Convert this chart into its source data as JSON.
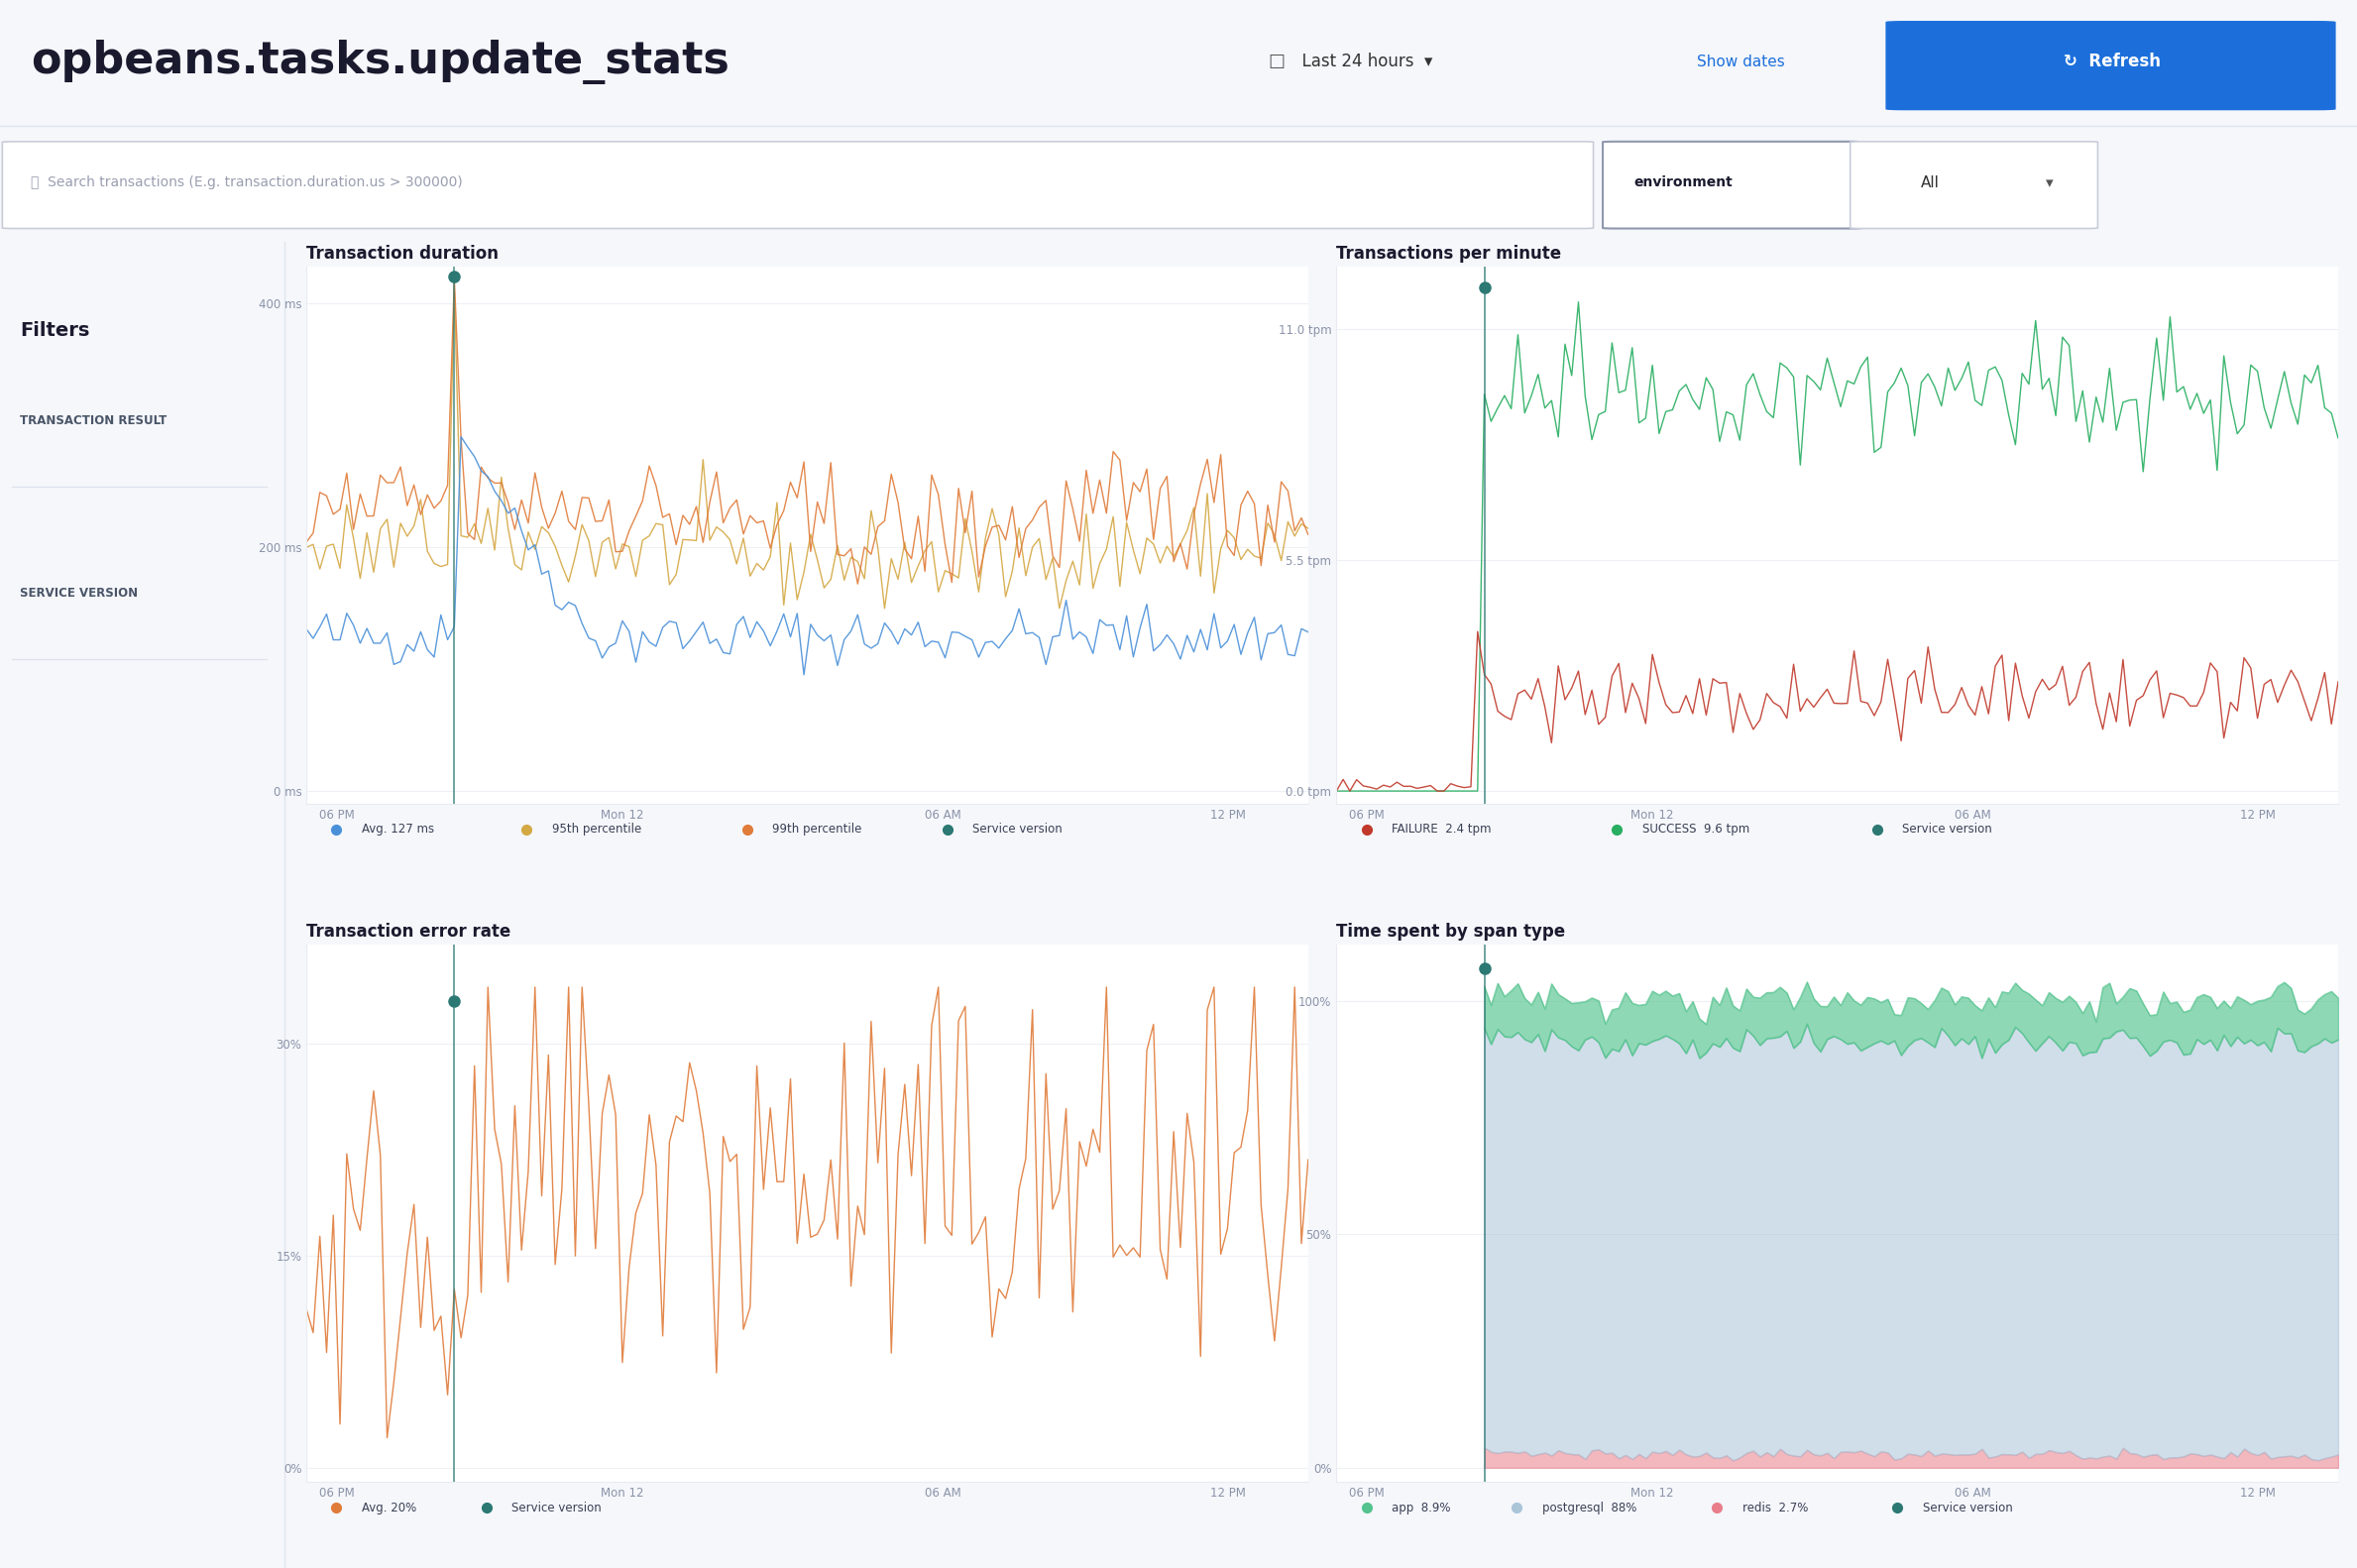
{
  "title": "opbeans.tasks.update_stats",
  "bg_color": "#f5f7fb",
  "panel_bg": "#ffffff",
  "search_placeholder": "Search transactions (E.g. transaction.duration.us > 300000)",
  "filter_label": "Filters",
  "filter_items": [
    "TRANSACTION RESULT",
    "SERVICE VERSION"
  ],
  "env_label": "environment",
  "env_value": "All",
  "time_range": "Last 24 hours",
  "xtick_labels": [
    "06 PM",
    "Mon 12",
    "06 AM",
    "12 PM"
  ],
  "panels": [
    {
      "title": "Transaction duration",
      "ylabel_ticks": [
        "0 ms",
        "200 ms",
        "400 ms"
      ],
      "ytick_vals": [
        0,
        200,
        400
      ],
      "ylim": [
        -10,
        430
      ],
      "legend": [
        {
          "label": "Avg. 127 ms",
          "color": "#4a90d9"
        },
        {
          "label": "95th percentile",
          "color": "#d4a843"
        },
        {
          "label": "99th percentile",
          "color": "#e07b39"
        },
        {
          "label": "Service version",
          "color": "#2c7873"
        }
      ],
      "series_colors": [
        "#4a90d9",
        "#d4a843",
        "#e07b39"
      ],
      "service_version_color": "#2c7873"
    },
    {
      "title": "Transactions per minute",
      "ylabel_ticks": [
        "0.0 tpm",
        "5.5 tpm",
        "11.0 tpm"
      ],
      "ytick_vals": [
        0.0,
        5.5,
        11.0
      ],
      "ylim": [
        -0.3,
        12.5
      ],
      "legend": [
        {
          "label": "FAILURE  2.4 tpm",
          "color": "#c0392b"
        },
        {
          "label": "SUCCESS  9.6 tpm",
          "color": "#27ae60"
        },
        {
          "label": "Service version",
          "color": "#2c7873"
        }
      ],
      "series_colors": [
        "#c0392b",
        "#27ae60"
      ],
      "service_version_color": "#2c7873"
    },
    {
      "title": "Transaction error rate",
      "ylabel_ticks": [
        "0%",
        "15%",
        "30%"
      ],
      "ytick_vals": [
        0,
        15,
        30
      ],
      "ylim": [
        -1,
        37
      ],
      "legend": [
        {
          "label": "Avg. 20%",
          "color": "#e07b39"
        },
        {
          "label": "Service version",
          "color": "#2c7873"
        }
      ],
      "series_colors": [
        "#e07b39"
      ],
      "service_version_color": "#2c7873"
    },
    {
      "title": "Time spent by span type",
      "ylabel_ticks": [
        "0%",
        "50%",
        "100%"
      ],
      "ytick_vals": [
        0,
        50,
        100
      ],
      "ylim": [
        -3,
        112
      ],
      "legend": [
        {
          "label": "app  8.9%",
          "color": "#54c38e"
        },
        {
          "label": "postgresql  88%",
          "color": "#aac4d8"
        },
        {
          "label": "redis  2.7%",
          "color": "#e87e8a"
        },
        {
          "label": "Service version",
          "color": "#2c7873"
        }
      ],
      "series_colors": [
        "#54c38e",
        "#aac4d8",
        "#e87e8a"
      ],
      "service_version_color": "#2c7873"
    }
  ],
  "refresh_btn_color": "#1c6fdb"
}
